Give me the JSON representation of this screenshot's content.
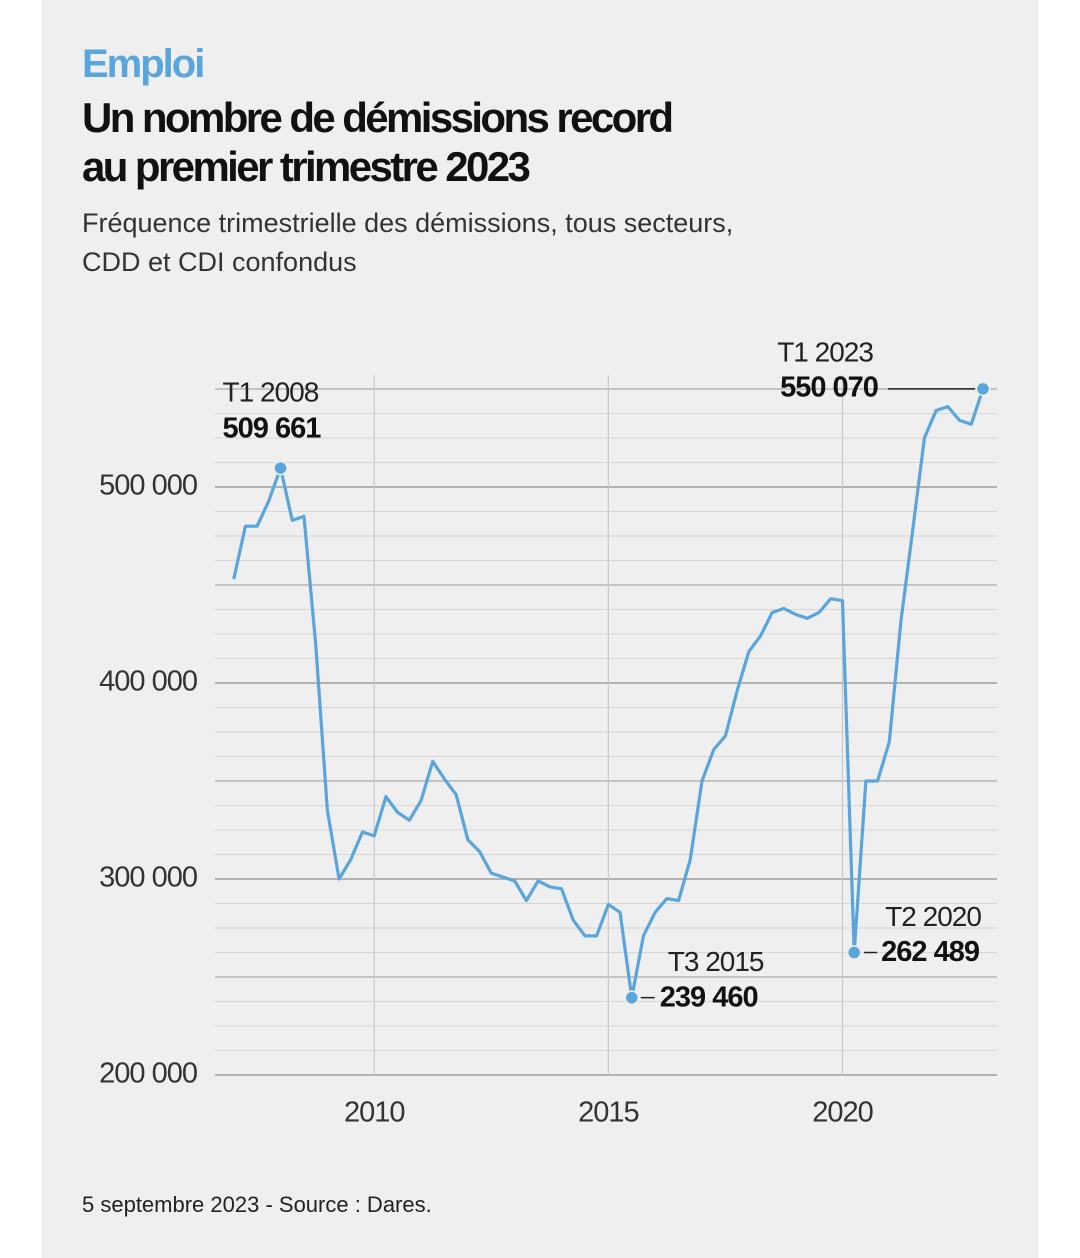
{
  "chart_data": {
    "type": "line",
    "kicker": "Emploi",
    "title_lines": [
      "Un nombre de démissions record",
      "au premier trimestre 2023"
    ],
    "subtitle_lines": [
      "Fréquence trimestrielle des démissions, tous secteurs,",
      "CDD et CDI confondus"
    ],
    "source": "5 septembre 2023 - Source : Dares.",
    "x": [
      2007,
      2007.25,
      2007.5,
      2007.75,
      2008,
      2008.25,
      2008.5,
      2008.75,
      2009,
      2009.25,
      2009.5,
      2009.75,
      2010,
      2010.25,
      2010.5,
      2010.75,
      2011,
      2011.25,
      2011.5,
      2011.75,
      2012,
      2012.25,
      2012.5,
      2012.75,
      2013,
      2013.25,
      2013.5,
      2013.75,
      2014,
      2014.25,
      2014.5,
      2014.75,
      2015,
      2015.25,
      2015.5,
      2015.75,
      2016,
      2016.25,
      2016.5,
      2016.75,
      2017,
      2017.25,
      2017.5,
      2017.75,
      2018,
      2018.25,
      2018.5,
      2018.75,
      2019,
      2019.25,
      2019.5,
      2019.75,
      2020,
      2020.25,
      2020.5,
      2020.75,
      2021,
      2021.25,
      2021.5,
      2021.75,
      2022,
      2022.25,
      2022.5,
      2022.75,
      2023
    ],
    "series": [
      {
        "name": "Démissions",
        "color": "#5aa5dc",
        "values": [
          453000,
          480000,
          480000,
          493000,
          509661,
          483000,
          485000,
          420000,
          335000,
          300000,
          310000,
          324000,
          322000,
          342000,
          334000,
          330000,
          340000,
          360000,
          351000,
          343000,
          320000,
          314000,
          303000,
          301000,
          299000,
          289000,
          299000,
          296000,
          295000,
          279000,
          271000,
          271000,
          287000,
          283000,
          239460,
          271000,
          283000,
          290000,
          289000,
          310000,
          350000,
          366000,
          373000,
          396000,
          416000,
          424000,
          436000,
          438000,
          435000,
          433000,
          436000,
          443000,
          442000,
          262489,
          350000,
          350000,
          370000,
          432000,
          478000,
          525000,
          539000,
          541000,
          534000,
          532000,
          550070
        ]
      }
    ],
    "annotations": [
      {
        "index": 4,
        "label": "T1 2008",
        "value_label": "509 661"
      },
      {
        "index": 34,
        "label": "T3 2015",
        "value_label": "239 460"
      },
      {
        "index": 53,
        "label": "T2 2020",
        "value_label": "262 489"
      },
      {
        "index": 64,
        "label": "T1 2023",
        "value_label": "550 070"
      }
    ],
    "xlim": [
      2006.6,
      2023.3
    ],
    "xticks": [
      2010,
      2015,
      2020
    ],
    "ylim": [
      200000,
      560000
    ],
    "yticks": [
      {
        "value": 200000,
        "label": "200 000"
      },
      {
        "value": 300000,
        "label": "300 000"
      },
      {
        "value": 400000,
        "label": "400 000"
      },
      {
        "value": 500000,
        "label": "500 000"
      }
    ],
    "ygrid": [
      200000,
      212500,
      225000,
      237500,
      250000,
      262500,
      275000,
      287500,
      300000,
      312500,
      325000,
      337500,
      350000,
      362500,
      375000,
      387500,
      400000,
      412500,
      425000,
      437500,
      450000,
      462500,
      475000,
      487500,
      500000,
      512500,
      525000,
      537500,
      550000
    ],
    "grid": true
  }
}
